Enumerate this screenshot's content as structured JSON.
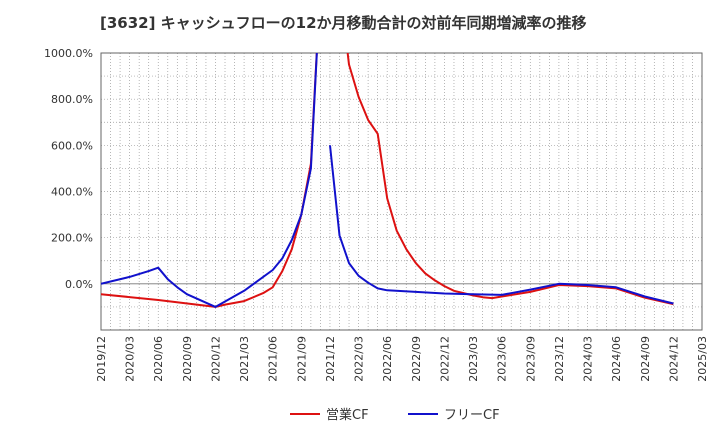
{
  "chart_data": {
    "type": "line",
    "title": "[3632]  キャッシュフローの12か月移動合計の対前年同期増減率の推移",
    "xlabel": "",
    "ylabel": "",
    "ylim": [
      -200,
      1000
    ],
    "yticks": [
      0,
      200,
      400,
      600,
      800,
      1000
    ],
    "ytick_labels": [
      "0.0%",
      "200.0%",
      "400.0%",
      "600.0%",
      "800.0%",
      "1000.0%"
    ],
    "xticks": [
      "2019/12",
      "2020/03",
      "2020/06",
      "2020/09",
      "2020/12",
      "2021/03",
      "2021/06",
      "2021/09",
      "2021/12",
      "2022/03",
      "2022/06",
      "2022/09",
      "2022/12",
      "2023/03",
      "2023/06",
      "2023/09",
      "2023/12",
      "2024/03",
      "2024/06",
      "2024/09",
      "2024/12",
      "2025/03"
    ],
    "grid": true,
    "legend_position": "bottom",
    "series": [
      {
        "name": "営業CF",
        "color": "#dd1111",
        "points": [
          [
            "2019/12",
            -45
          ],
          [
            "2020/06",
            -70
          ],
          [
            "2020/12",
            -100
          ],
          [
            "2021/01",
            -90
          ],
          [
            "2021/03",
            -75
          ],
          [
            "2021/05",
            -40
          ],
          [
            "2021/06",
            -15
          ],
          [
            "2021/07",
            55
          ],
          [
            "2021/08",
            150
          ],
          [
            "2021/09",
            300
          ],
          [
            "2021/10",
            520
          ],
          [
            "2021/11",
            1300
          ],
          [
            "2022/01",
            1300
          ],
          [
            "2022/02",
            950
          ],
          [
            "2022/03",
            810
          ],
          [
            "2022/04",
            710
          ],
          [
            "2022/05",
            650
          ],
          [
            "2022/06",
            370
          ],
          [
            "2022/07",
            230
          ],
          [
            "2022/08",
            150
          ],
          [
            "2022/09",
            90
          ],
          [
            "2022/10",
            45
          ],
          [
            "2022/11",
            15
          ],
          [
            "2022/12",
            -10
          ],
          [
            "2023/01",
            -30
          ],
          [
            "2023/02",
            -40
          ],
          [
            "2023/03",
            -50
          ],
          [
            "2023/04",
            -58
          ],
          [
            "2023/05",
            -62
          ],
          [
            "2023/06",
            -55
          ],
          [
            "2023/09",
            -35
          ],
          [
            "2023/12",
            -5
          ],
          [
            "2024/03",
            -10
          ],
          [
            "2024/06",
            -20
          ],
          [
            "2024/09",
            -60
          ],
          [
            "2024/12",
            -88
          ]
        ]
      },
      {
        "name": "フリーCF",
        "color": "#1111cc",
        "points": [
          [
            "2019/12",
            0
          ],
          [
            "2020/03",
            30
          ],
          [
            "2020/05",
            55
          ],
          [
            "2020/06",
            70
          ],
          [
            "2020/07",
            20
          ],
          [
            "2020/08",
            -15
          ],
          [
            "2020/09",
            -45
          ],
          [
            "2020/12",
            -100
          ],
          [
            "2021/03",
            -30
          ],
          [
            "2021/06",
            60
          ],
          [
            "2021/07",
            110
          ],
          [
            "2021/08",
            190
          ],
          [
            "2021/09",
            300
          ],
          [
            "2021/10",
            500
          ],
          [
            "2021/11",
            1300
          ],
          null,
          [
            "2021/12",
            600
          ],
          [
            "2022/01",
            210
          ],
          [
            "2022/02",
            90
          ],
          [
            "2022/03",
            35
          ],
          [
            "2022/04",
            5
          ],
          [
            "2022/05",
            -20
          ],
          [
            "2022/06",
            -28
          ],
          [
            "2022/09",
            -35
          ],
          [
            "2022/12",
            -42
          ],
          [
            "2023/03",
            -45
          ],
          [
            "2023/06",
            -48
          ],
          [
            "2023/09",
            -25
          ],
          [
            "2023/12",
            0
          ],
          [
            "2024/03",
            -5
          ],
          [
            "2024/06",
            -15
          ],
          [
            "2024/09",
            -55
          ],
          [
            "2024/12",
            -85
          ]
        ]
      }
    ]
  }
}
